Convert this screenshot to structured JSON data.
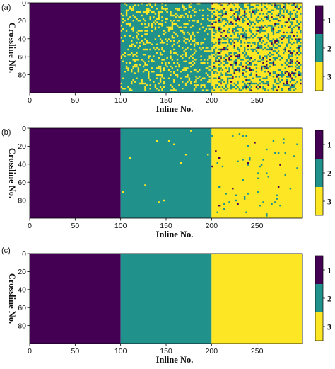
{
  "chart_data": [
    {
      "type": "heatmap",
      "panel_label": "(a)",
      "xlabel": "Inline No.",
      "ylabel": "Crossline No.",
      "x_ticks": [
        0,
        50,
        100,
        150,
        200,
        250
      ],
      "y_ticks": [
        0,
        20,
        40,
        60,
        80
      ],
      "xlim": [
        0,
        300
      ],
      "ylim": [
        100,
        0
      ],
      "colorbar": {
        "labels": [
          "1",
          "2",
          "3"
        ],
        "colors": [
          "#440154",
          "#21918c",
          "#fde725"
        ]
      },
      "regions": [
        {
          "class": "1",
          "x_range": [
            0,
            100
          ],
          "noise_fraction": 0.0
        },
        {
          "class": "2",
          "x_range": [
            100,
            200
          ],
          "noise_fraction": 0.22
        },
        {
          "class": "3",
          "x_range": [
            200,
            300
          ],
          "noise_fraction": 0.32
        }
      ]
    },
    {
      "type": "heatmap",
      "panel_label": "(b)",
      "xlabel": "Inline No.",
      "ylabel": "Crossline No.",
      "x_ticks": [
        0,
        50,
        100,
        150,
        200,
        250
      ],
      "y_ticks": [
        0,
        20,
        40,
        60,
        80
      ],
      "xlim": [
        0,
        300
      ],
      "ylim": [
        100,
        0
      ],
      "colorbar": {
        "labels": [
          "1",
          "2",
          "3"
        ],
        "colors": [
          "#440154",
          "#21918c",
          "#fde725"
        ]
      },
      "regions": [
        {
          "class": "1",
          "x_range": [
            0,
            100
          ],
          "noise_fraction": 0.0
        },
        {
          "class": "2",
          "x_range": [
            100,
            200
          ],
          "noise_fraction": 0.004
        },
        {
          "class": "3",
          "x_range": [
            200,
            300
          ],
          "noise_fraction": 0.02
        }
      ]
    },
    {
      "type": "heatmap",
      "panel_label": "(c)",
      "xlabel": "Inline No.",
      "ylabel": "Crossline No.",
      "x_ticks": [
        0,
        50,
        100,
        150,
        200,
        250
      ],
      "y_ticks": [
        0,
        20,
        40,
        60,
        80
      ],
      "xlim": [
        0,
        300
      ],
      "ylim": [
        100,
        0
      ],
      "colorbar": {
        "labels": [
          "1",
          "2",
          "3"
        ],
        "colors": [
          "#440154",
          "#21918c",
          "#fde725"
        ]
      },
      "regions": [
        {
          "class": "1",
          "x_range": [
            0,
            100
          ],
          "noise_fraction": 0.0
        },
        {
          "class": "2",
          "x_range": [
            100,
            200
          ],
          "noise_fraction": 0.0
        },
        {
          "class": "3",
          "x_range": [
            200,
            300
          ],
          "noise_fraction": 0.0
        }
      ]
    }
  ]
}
